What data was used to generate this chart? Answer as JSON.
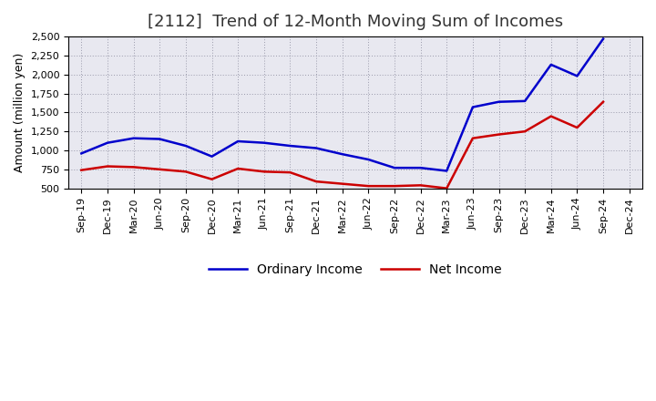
{
  "title": "[2112]  Trend of 12-Month Moving Sum of Incomes",
  "ylabel": "Amount (million yen)",
  "ylim": [
    500,
    2500
  ],
  "yticks": [
    500,
    750,
    1000,
    1250,
    1500,
    1750,
    2000,
    2250,
    2500
  ],
  "background_color": "#ffffff",
  "plot_bg_color": "#e8e8f0",
  "grid_color": "#9999aa",
  "x_labels": [
    "Sep-19",
    "Dec-19",
    "Mar-20",
    "Jun-20",
    "Sep-20",
    "Dec-20",
    "Mar-21",
    "Jun-21",
    "Sep-21",
    "Dec-21",
    "Mar-22",
    "Jun-22",
    "Sep-22",
    "Dec-22",
    "Mar-23",
    "Jun-23",
    "Sep-23",
    "Dec-23",
    "Mar-24",
    "Jun-24",
    "Sep-24",
    "Dec-24"
  ],
  "ordinary_income": [
    960,
    1100,
    1160,
    1150,
    1060,
    920,
    1120,
    1100,
    1060,
    1030,
    950,
    880,
    770,
    770,
    730,
    1570,
    1640,
    1650,
    2130,
    1980,
    2470,
    null
  ],
  "net_income": [
    740,
    790,
    780,
    750,
    720,
    620,
    760,
    720,
    710,
    590,
    560,
    530,
    530,
    540,
    500,
    1160,
    1210,
    1250,
    1450,
    1300,
    1640,
    null
  ],
  "ordinary_color": "#0000cc",
  "net_color": "#cc0000",
  "line_width": 1.8,
  "legend_labels": [
    "Ordinary Income",
    "Net Income"
  ],
  "title_fontsize": 13,
  "title_color": "#333333",
  "axis_fontsize": 9,
  "tick_fontsize": 8,
  "ylabel_fontsize": 9
}
